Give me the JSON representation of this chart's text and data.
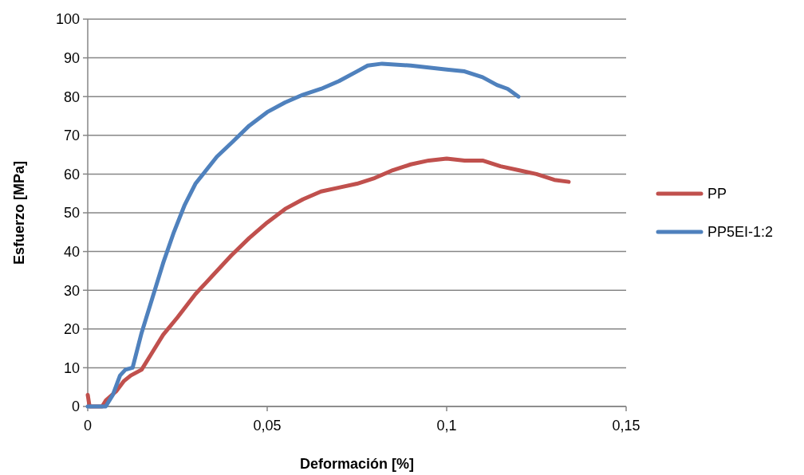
{
  "chart_data": {
    "type": "line",
    "xlabel": "Deformación [%]",
    "ylabel": "Esfuerzo [MPa]",
    "xlim": [
      0,
      0.15
    ],
    "xticks": [
      0,
      {
        "value": 0.05,
        "label": "0,05"
      },
      {
        "value": 0.1,
        "label": "0,1"
      },
      {
        "value": 0.15,
        "label": "0,15"
      }
    ],
    "ylim": [
      0,
      100
    ],
    "yticks": [
      0,
      10,
      20,
      30,
      40,
      50,
      60,
      70,
      80,
      90,
      100
    ],
    "grid": "y",
    "legend": "right",
    "marker": "none",
    "line_style": "solid",
    "series": [
      {
        "name": "PP",
        "color": "#c0504d",
        "x": [
          0,
          0.0005,
          0.004,
          0.005,
          0.008,
          0.01,
          0.012,
          0.015,
          0.018,
          0.021,
          0.025,
          0.03,
          0.035,
          0.04,
          0.045,
          0.05,
          0.055,
          0.06,
          0.065,
          0.07,
          0.075,
          0.08,
          0.085,
          0.09,
          0.095,
          0.1,
          0.105,
          0.11,
          0.115,
          0.12,
          0.125,
          0.13,
          0.134
        ],
        "values": [
          3,
          0,
          0,
          1.5,
          4,
          6.5,
          8,
          9.5,
          14,
          18.5,
          23,
          29,
          34,
          39,
          43.5,
          47.5,
          51,
          53.5,
          55.5,
          56.5,
          57.5,
          59,
          61,
          62.5,
          63.5,
          64,
          63.5,
          63.5,
          62,
          61,
          60,
          58.5,
          58
        ]
      },
      {
        "name": "PP5EI-1:2",
        "color": "#4f81bd",
        "x": [
          0,
          0.005,
          0.007,
          0.009,
          0.0105,
          0.0125,
          0.015,
          0.018,
          0.021,
          0.024,
          0.027,
          0.03,
          0.033,
          0.036,
          0.04,
          0.045,
          0.05,
          0.055,
          0.06,
          0.065,
          0.07,
          0.075,
          0.078,
          0.082,
          0.09,
          0.095,
          0.1,
          0.105,
          0.11,
          0.114,
          0.117,
          0.12
        ],
        "values": [
          0,
          0,
          3,
          8,
          9.5,
          10,
          19,
          28,
          37,
          45,
          52,
          57.5,
          61,
          64.5,
          68,
          72.5,
          76,
          78.5,
          80.5,
          82,
          84,
          86.5,
          88,
          88.5,
          88,
          87.5,
          87,
          86.5,
          85,
          83,
          82,
          80
        ]
      }
    ]
  }
}
